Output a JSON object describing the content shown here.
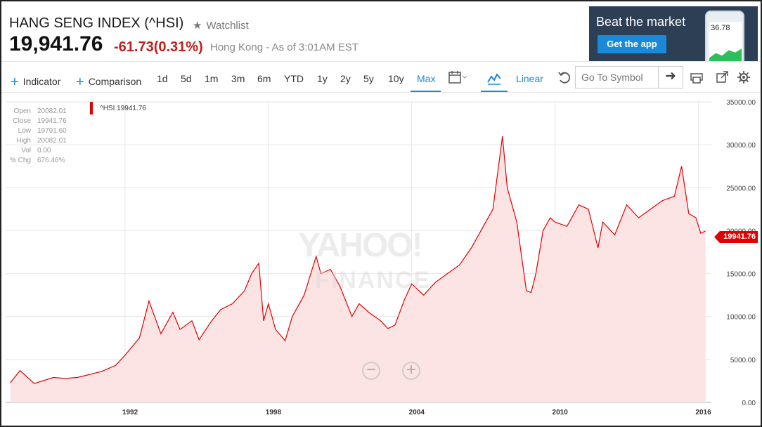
{
  "quote": {
    "title": "HANG SENG INDEX (^HSI)",
    "watchlist": "Watchlist",
    "price": "19,941.76",
    "change": "-61.73",
    "change_pct": "(0.31%)",
    "market_status": "Hong Kong - As of 3:01AM EST"
  },
  "ad": {
    "headline": "Beat the market",
    "button": "Get the app",
    "phone_value": "36.78"
  },
  "toolbar": {
    "indicator": "Indicator",
    "comparison": "Comparison",
    "ranges": [
      "1d",
      "5d",
      "1m",
      "3m",
      "6m",
      "YTD",
      "1y",
      "2y",
      "5y",
      "10y",
      "Max"
    ],
    "scale": "Linear",
    "symbol_placeholder": "Go To Symbol"
  },
  "info_panel": [
    {
      "label": "Open",
      "value": "20082.01"
    },
    {
      "label": "Close",
      "value": "19941.76"
    },
    {
      "label": "Low",
      "value": "19791.60"
    },
    {
      "label": "High",
      "value": "20082.01"
    },
    {
      "label": "Vol",
      "value": "0.00"
    },
    {
      "label": "% Chg",
      "value": "676.46%"
    }
  ],
  "legend": "^HSI 19941.76",
  "current_badge": "19941.76",
  "watermark": {
    "line1": "YAHOO!",
    "line2": "FINANCE"
  },
  "chart_data": {
    "type": "area",
    "series": [
      {
        "name": "^HSI",
        "x": [
          1987.2,
          1987.6,
          1988.2,
          1989.0,
          1989.5,
          1990.0,
          1990.6,
          1991.0,
          1991.6,
          1992.0,
          1992.6,
          1993.0,
          1993.5,
          1994.0,
          1994.3,
          1994.8,
          1995.1,
          1995.6,
          1996.0,
          1996.5,
          1997.0,
          1997.3,
          1997.6,
          1997.8,
          1998.0,
          1998.3,
          1998.7,
          1999.0,
          1999.5,
          2000.0,
          2000.2,
          2000.6,
          2001.0,
          2001.5,
          2001.8,
          2002.2,
          2002.7,
          2003.0,
          2003.3,
          2003.7,
          2004.0,
          2004.5,
          2005.0,
          2005.5,
          2006.0,
          2006.5,
          2007.0,
          2007.4,
          2007.8,
          2008.0,
          2008.4,
          2008.8,
          2009.0,
          2009.2,
          2009.5,
          2009.8,
          2010.0,
          2010.5,
          2011.0,
          2011.4,
          2011.8,
          2012.0,
          2012.5,
          2013.0,
          2013.5,
          2014.0,
          2014.5,
          2015.0,
          2015.3,
          2015.6,
          2015.9,
          2016.1,
          2016.3
        ],
        "y": [
          2300,
          3700,
          2200,
          2900,
          2800,
          2900,
          3300,
          3600,
          4300,
          5500,
          7500,
          11800,
          8000,
          10500,
          8500,
          9500,
          7300,
          9400,
          10800,
          11500,
          13000,
          15000,
          16200,
          9500,
          11500,
          8500,
          7200,
          10000,
          12500,
          17000,
          15000,
          15500,
          13500,
          10000,
          11500,
          10500,
          9500,
          8600,
          9000,
          12000,
          13800,
          12500,
          14000,
          15000,
          16000,
          18000,
          20500,
          22500,
          31000,
          25000,
          21000,
          13000,
          12800,
          15000,
          20000,
          21500,
          21000,
          20500,
          23000,
          22500,
          18000,
          21000,
          19500,
          23000,
          21500,
          22500,
          23500,
          24000,
          27500,
          22000,
          21500,
          19700,
          19941.76
        ]
      }
    ],
    "xlim": [
      1987.0,
      2016.4
    ],
    "ylim": [
      0,
      35000
    ],
    "x_ticks": [
      "1992",
      "1998",
      "2004",
      "2010",
      "2016"
    ],
    "x_tick_values": [
      1992,
      1998,
      2004,
      2010,
      2016
    ],
    "y_ticks": [
      "0.00",
      "5000.00",
      "10000.00",
      "15000.00",
      "20000.00",
      "25000.00",
      "30000.00",
      "35000.00"
    ],
    "y_tick_values": [
      0,
      5000,
      10000,
      15000,
      20000,
      25000,
      30000,
      35000
    ],
    "grid": true,
    "line_color": "#e30000",
    "fill_color": "#fde4e4"
  }
}
